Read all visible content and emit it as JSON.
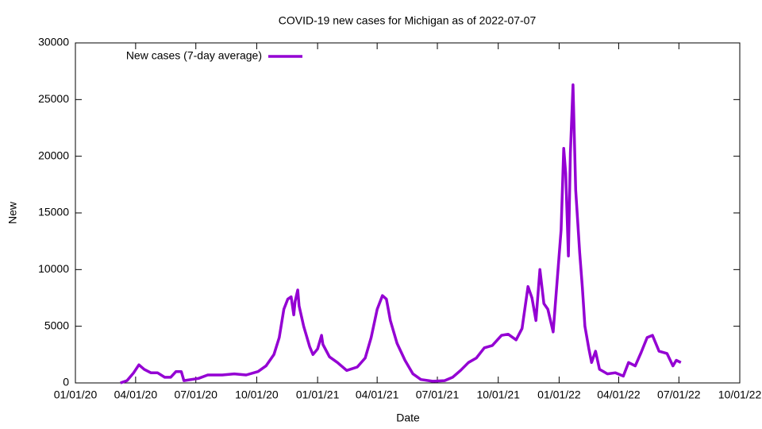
{
  "chart_data": {
    "type": "line",
    "title": "COVID-19 new cases for Michigan as of 2022-07-07",
    "x_label": "Date",
    "y_label": "New",
    "legend": "top-left",
    "x": [
      "2020-03-09",
      "2020-03-19",
      "2020-03-29",
      "2020-04-06",
      "2020-04-14",
      "2020-04-24",
      "2020-05-04",
      "2020-05-15",
      "2020-05-24",
      "2020-06-01",
      "2020-06-09",
      "2020-06-13",
      "2020-07-05",
      "2020-07-19",
      "2020-08-10",
      "2020-08-28",
      "2020-09-15",
      "2020-10-03",
      "2020-10-15",
      "2020-10-27",
      "2020-11-04",
      "2020-11-11",
      "2020-11-17",
      "2020-11-22",
      "2020-11-26",
      "2020-11-28",
      "2020-12-02",
      "2020-12-04",
      "2020-12-11",
      "2020-12-20",
      "2020-12-25",
      "2021-01-01",
      "2021-01-07",
      "2021-01-09",
      "2021-01-19",
      "2021-01-31",
      "2021-02-14",
      "2021-03-02",
      "2021-03-14",
      "2021-03-23",
      "2021-04-01",
      "2021-04-09",
      "2021-04-15",
      "2021-04-21",
      "2021-05-01",
      "2021-05-13",
      "2021-05-25",
      "2021-06-06",
      "2021-06-24",
      "2021-07-12",
      "2021-07-24",
      "2021-08-05",
      "2021-08-17",
      "2021-08-29",
      "2021-09-10",
      "2021-09-22",
      "2021-10-06",
      "2021-10-16",
      "2021-10-28",
      "2021-11-06",
      "2021-11-15",
      "2021-11-21",
      "2021-11-27",
      "2021-12-03",
      "2021-12-09",
      "2021-12-15",
      "2021-12-23",
      "2021-12-29",
      "2022-01-04",
      "2022-01-08",
      "2022-01-11",
      "2022-01-15",
      "2022-01-18",
      "2022-01-22",
      "2022-01-26",
      "2022-02-01",
      "2022-02-05",
      "2022-02-09",
      "2022-02-15",
      "2022-02-19",
      "2022-02-25",
      "2022-03-03",
      "2022-03-15",
      "2022-03-27",
      "2022-04-08",
      "2022-04-16",
      "2022-04-26",
      "2022-05-05",
      "2022-05-14",
      "2022-05-22",
      "2022-06-01",
      "2022-06-13",
      "2022-06-22",
      "2022-06-27",
      "2022-07-04"
    ],
    "series": [
      {
        "name": "New cases (7-day average)",
        "color": "#9400d3",
        "values": [
          0,
          200,
          900,
          1600,
          1200,
          900,
          900,
          500,
          500,
          1000,
          1000,
          200,
          400,
          700,
          700,
          800,
          700,
          1000,
          1500,
          2500,
          4000,
          6500,
          7400,
          7600,
          6000,
          7200,
          8200,
          6800,
          5000,
          3200,
          2500,
          3000,
          4200,
          3400,
          2300,
          1800,
          1100,
          1400,
          2200,
          4000,
          6500,
          7700,
          7400,
          5500,
          3500,
          2000,
          800,
          300,
          150,
          200,
          500,
          1100,
          1800,
          2200,
          3100,
          3300,
          4200,
          4300,
          3800,
          4800,
          8500,
          7500,
          5500,
          10000,
          7000,
          6500,
          4500,
          9000,
          13500,
          20700,
          18500,
          11200,
          20300,
          26300,
          17000,
          11500,
          8500,
          5000,
          3000,
          1800,
          2800,
          1200,
          800,
          900,
          600,
          1800,
          1500,
          2700,
          4000,
          4200,
          2800,
          2600,
          1500,
          2000,
          1800
        ]
      }
    ],
    "xlim": [
      "2020-01-01",
      "2022-10-01"
    ],
    "xticks": [
      {
        "value": "2020-01-01",
        "label": "01/01/20"
      },
      {
        "value": "2020-04-01",
        "label": "04/01/20"
      },
      {
        "value": "2020-07-01",
        "label": "07/01/20"
      },
      {
        "value": "2020-10-01",
        "label": "10/01/20"
      },
      {
        "value": "2021-01-01",
        "label": "01/01/21"
      },
      {
        "value": "2021-04-01",
        "label": "04/01/21"
      },
      {
        "value": "2021-07-01",
        "label": "07/01/21"
      },
      {
        "value": "2021-10-01",
        "label": "10/01/21"
      },
      {
        "value": "2022-01-01",
        "label": "01/01/22"
      },
      {
        "value": "2022-04-01",
        "label": "04/01/22"
      },
      {
        "value": "2022-07-01",
        "label": "07/01/22"
      },
      {
        "value": "2022-10-01",
        "label": "10/01/22"
      }
    ],
    "ylim": [
      0,
      30000
    ],
    "yticks": [
      0,
      5000,
      10000,
      15000,
      20000,
      25000,
      30000
    ]
  }
}
